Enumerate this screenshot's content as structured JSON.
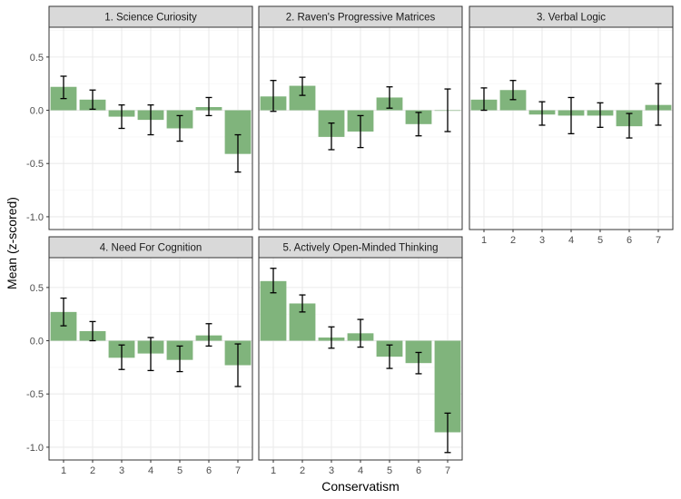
{
  "chart_data": {
    "type": "bar",
    "facets": true,
    "xlabel": "Conservatism",
    "ylabel": "Mean (z-scored)",
    "ylim": [
      -1.12,
      0.78
    ],
    "y_ticks": [
      -1.0,
      -0.5,
      0.0,
      0.5
    ],
    "y_tick_labels": [
      "-1.0",
      "-0.5",
      "0.0",
      "0.5"
    ],
    "categories": [
      "1",
      "2",
      "3",
      "4",
      "5",
      "6",
      "7"
    ],
    "bar_color": "#80b47c",
    "grid": true,
    "panels": [
      {
        "title": "1. Science Curiosity",
        "values": [
          0.22,
          0.1,
          -0.06,
          -0.09,
          -0.17,
          0.03,
          -0.41
        ],
        "error_low": [
          0.11,
          0.01,
          -0.17,
          -0.23,
          -0.29,
          -0.05,
          -0.58
        ],
        "error_high": [
          0.32,
          0.19,
          0.05,
          0.05,
          -0.05,
          0.12,
          -0.23
        ]
      },
      {
        "title": "2. Raven's Progressive Matrices",
        "values": [
          0.13,
          0.23,
          -0.25,
          -0.2,
          0.12,
          -0.13,
          0.0
        ],
        "error_low": [
          -0.01,
          0.14,
          -0.37,
          -0.35,
          0.02,
          -0.24,
          -0.2
        ],
        "error_high": [
          0.28,
          0.31,
          -0.12,
          -0.05,
          0.22,
          -0.02,
          0.2
        ]
      },
      {
        "title": "3. Verbal Logic",
        "values": [
          0.1,
          0.19,
          -0.04,
          -0.05,
          -0.05,
          -0.15,
          0.05
        ],
        "error_low": [
          0.0,
          0.1,
          -0.14,
          -0.22,
          -0.16,
          -0.26,
          -0.14
        ],
        "error_high": [
          0.21,
          0.28,
          0.08,
          0.12,
          0.07,
          -0.03,
          0.25
        ]
      },
      {
        "title": "4. Need For Cognition",
        "values": [
          0.27,
          0.09,
          -0.16,
          -0.12,
          -0.18,
          0.05,
          -0.23
        ],
        "error_low": [
          0.14,
          0.0,
          -0.27,
          -0.28,
          -0.29,
          -0.05,
          -0.43
        ],
        "error_high": [
          0.4,
          0.18,
          -0.04,
          0.03,
          -0.05,
          0.16,
          -0.03
        ]
      },
      {
        "title": "5. Actively Open-Minded Thinking",
        "values": [
          0.56,
          0.35,
          0.03,
          0.07,
          -0.15,
          -0.21,
          -0.86
        ],
        "error_low": [
          0.45,
          0.27,
          -0.07,
          -0.06,
          -0.26,
          -0.31,
          -1.05
        ],
        "error_high": [
          0.68,
          0.43,
          0.13,
          0.2,
          -0.04,
          -0.11,
          -0.68
        ]
      }
    ]
  }
}
